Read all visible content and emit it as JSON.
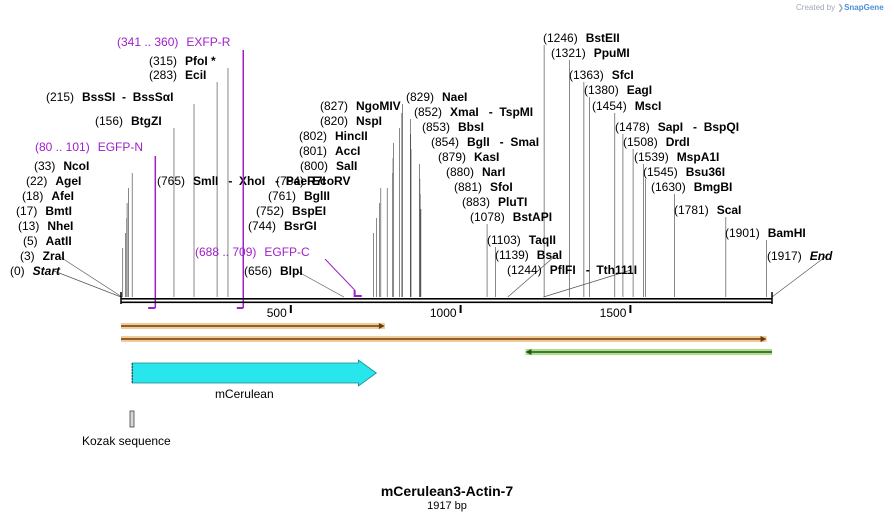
{
  "credit": {
    "prefix": "Created by",
    "brand": "SnapGene"
  },
  "title": "mCerulean3-Actin-7",
  "length_label": "1917 bp",
  "sequence_length": 1917,
  "ticks": [
    500,
    1000,
    1500
  ],
  "colors": {
    "primer": "#a020c8",
    "feature": "#28e6ec",
    "orf": "#e8a040",
    "orf_rev": "#70c030"
  },
  "sites": [
    {
      "pos": "(0)",
      "name": "Start",
      "bp": 0,
      "kind": "end"
    },
    {
      "pos": "(3)",
      "name": "ZraI",
      "bp": 3
    },
    {
      "pos": "(5)",
      "name": "AatII",
      "bp": 5
    },
    {
      "pos": "(13)",
      "name": "NheI",
      "bp": 13
    },
    {
      "pos": "(17)",
      "name": "BmtI",
      "bp": 17
    },
    {
      "pos": "(18)",
      "name": "AfeI",
      "bp": 18
    },
    {
      "pos": "(22)",
      "name": "AgeI",
      "bp": 22
    },
    {
      "pos": "(33)",
      "name": "NcoI",
      "bp": 33
    },
    {
      "pos": "(156)",
      "name": "BtgZI",
      "bp": 156
    },
    {
      "pos": "(215)",
      "name": "BssSI  -  BssSαI",
      "bp": 215
    },
    {
      "pos": "(283)",
      "name": "EciI",
      "bp": 283
    },
    {
      "pos": "(315)",
      "name": "PfoI *",
      "bp": 315
    },
    {
      "pos": "(765)",
      "name": "SmlI   -  XhoI   -  PaeR7I",
      "bp": 765
    },
    {
      "pos": "(656)",
      "name": "BlpI",
      "bp": 656
    },
    {
      "pos": "(744)",
      "name": "BsrGI",
      "bp": 744
    },
    {
      "pos": "(752)",
      "name": "BspEI",
      "bp": 752
    },
    {
      "pos": "(761)",
      "name": "BglII",
      "bp": 761
    },
    {
      "pos": "(784)",
      "name": "EcoRV",
      "bp": 784
    },
    {
      "pos": "(800)",
      "name": "SalI",
      "bp": 800
    },
    {
      "pos": "(801)",
      "name": "AccI",
      "bp": 801
    },
    {
      "pos": "(802)",
      "name": "HincII",
      "bp": 802
    },
    {
      "pos": "(820)",
      "name": "NspI",
      "bp": 820
    },
    {
      "pos": "(827)",
      "name": "NgoMIV",
      "bp": 827
    },
    {
      "pos": "(829)",
      "name": "NaeI",
      "bp": 829
    },
    {
      "pos": "(852)",
      "name": "XmaI   -  TspMI",
      "bp": 852
    },
    {
      "pos": "(853)",
      "name": "BbsI",
      "bp": 853
    },
    {
      "pos": "(854)",
      "name": "BglI   -  SmaI",
      "bp": 854
    },
    {
      "pos": "(879)",
      "name": "KasI",
      "bp": 879
    },
    {
      "pos": "(880)",
      "name": "NarI",
      "bp": 880
    },
    {
      "pos": "(881)",
      "name": "SfoI",
      "bp": 881
    },
    {
      "pos": "(883)",
      "name": "PluTI",
      "bp": 883
    },
    {
      "pos": "(1078)",
      "name": "BstAPI",
      "bp": 1078
    },
    {
      "pos": "(1103)",
      "name": "TaqII",
      "bp": 1103
    },
    {
      "pos": "(1139)",
      "name": "BsaI",
      "bp": 1139
    },
    {
      "pos": "(1244)",
      "name": "PflFI   -  Tth111I",
      "bp": 1244
    },
    {
      "pos": "(1246)",
      "name": "BstEII",
      "bp": 1246
    },
    {
      "pos": "(1321)",
      "name": "PpuMI",
      "bp": 1321
    },
    {
      "pos": "(1363)",
      "name": "SfcI",
      "bp": 1363
    },
    {
      "pos": "(1380)",
      "name": "EagI",
      "bp": 1380
    },
    {
      "pos": "(1454)",
      "name": "MscI",
      "bp": 1454
    },
    {
      "pos": "(1478)",
      "name": "SapI   -  BspQI",
      "bp": 1478
    },
    {
      "pos": "(1508)",
      "name": "DrdI",
      "bp": 1508
    },
    {
      "pos": "(1539)",
      "name": "MspA1I",
      "bp": 1539
    },
    {
      "pos": "(1545)",
      "name": "Bsu36I",
      "bp": 1545
    },
    {
      "pos": "(1630)",
      "name": "BmgBI",
      "bp": 1630
    },
    {
      "pos": "(1781)",
      "name": "ScaI",
      "bp": 1781
    },
    {
      "pos": "(1901)",
      "name": "BamHI",
      "bp": 1901
    },
    {
      "pos": "(1917)",
      "name": "End",
      "bp": 1917,
      "kind": "end"
    }
  ],
  "primers": [
    {
      "range": "(341 .. 360)",
      "name": "EXFP-R",
      "start": 341,
      "end": 360,
      "dir": "rev"
    },
    {
      "range": "(80 .. 101)",
      "name": "EGFP-N",
      "start": 80,
      "end": 101,
      "dir": "rev"
    },
    {
      "range": "(688 .. 709)",
      "name": "EGFP-C",
      "start": 688,
      "end": 709,
      "dir": "fwd"
    }
  ],
  "features": [
    {
      "name": "mCerulean",
      "start": 33,
      "end": 752,
      "type": "cds"
    },
    {
      "name": "Kozak sequence",
      "start": 23,
      "end": 32,
      "type": "regulatory"
    }
  ],
  "orfs": [
    {
      "start": 0,
      "end": 777,
      "dir": "fwd"
    },
    {
      "start": 0,
      "end": 1901,
      "dir": "fwd"
    },
    {
      "start": 1191,
      "end": 1917,
      "dir": "rev"
    }
  ]
}
